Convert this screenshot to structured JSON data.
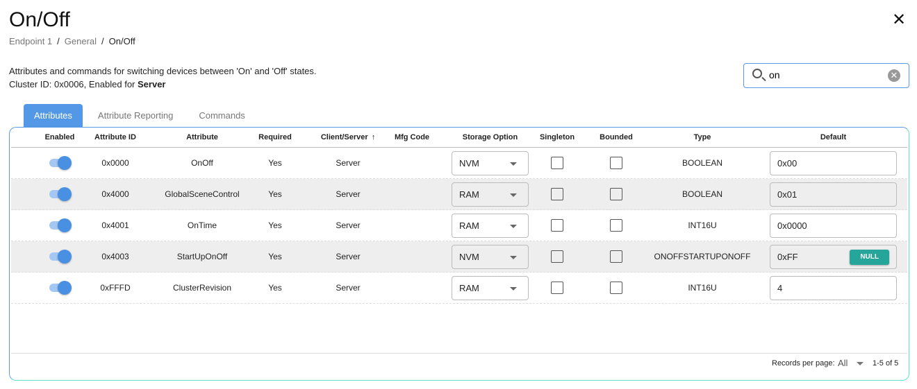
{
  "title": "On/Off",
  "breadcrumb": [
    "Endpoint 1",
    "General",
    "On/Off"
  ],
  "description": "Attributes and commands for switching devices between 'On' and 'Off' states.",
  "cluster_prefix": "Cluster ID: 0x0006, Enabled for ",
  "cluster_side": "Server",
  "search": {
    "value": "on"
  },
  "tabs": [
    {
      "label": "Attributes",
      "active": true
    },
    {
      "label": "Attribute Reporting"
    },
    {
      "label": "Commands"
    }
  ],
  "columns": [
    "Enabled",
    "Attribute ID",
    "Attribute",
    "Required",
    "Client/Server",
    "Mfg Code",
    "Storage Option",
    "Singleton",
    "Bounded",
    "Type",
    "Default"
  ],
  "sort_indicator": "↑",
  "rows": [
    {
      "enabled": true,
      "id": "0x0000",
      "name": "OnOff",
      "required": "Yes",
      "side": "Server",
      "mfg": "",
      "storage": "NVM",
      "singleton": false,
      "bounded": false,
      "type": "BOOLEAN",
      "default": "0x00",
      "disabled": false,
      "null_button": false
    },
    {
      "enabled": true,
      "id": "0x4000",
      "name": "GlobalSceneControl",
      "required": "Yes",
      "side": "Server",
      "mfg": "",
      "storage": "RAM",
      "singleton": false,
      "bounded": false,
      "type": "BOOLEAN",
      "default": "0x01",
      "disabled": true,
      "null_button": false
    },
    {
      "enabled": true,
      "id": "0x4001",
      "name": "OnTime",
      "required": "Yes",
      "side": "Server",
      "mfg": "",
      "storage": "RAM",
      "singleton": false,
      "bounded": false,
      "type": "INT16U",
      "default": "0x0000",
      "disabled": false,
      "null_button": false
    },
    {
      "enabled": true,
      "id": "0x4003",
      "name": "StartUpOnOff",
      "required": "Yes",
      "side": "Server",
      "mfg": "",
      "storage": "NVM",
      "singleton": false,
      "bounded": false,
      "type": "ONOFFSTARTUPONOFF",
      "default": "0xFF",
      "disabled": true,
      "null_button": true
    },
    {
      "enabled": true,
      "id": "0xFFFD",
      "name": "ClusterRevision",
      "required": "Yes",
      "side": "Server",
      "mfg": "",
      "storage": "RAM",
      "singleton": false,
      "bounded": false,
      "type": "INT16U",
      "default": "4",
      "disabled": false,
      "null_button": false
    }
  ],
  "null_label": "NULL",
  "footer": {
    "records_label": "Records per page:",
    "records_value": "All",
    "count": "1-5 of 5"
  },
  "colors": {
    "accent": "#5398e6",
    "null_button": "#26a69a"
  }
}
